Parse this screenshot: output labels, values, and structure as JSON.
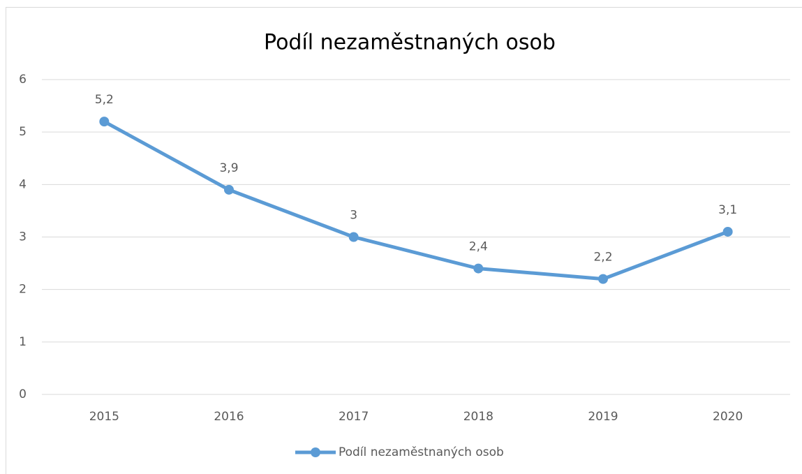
{
  "chart_data": {
    "type": "line",
    "title": "Podíl nezaměstnaných osob",
    "categories": [
      "2015",
      "2016",
      "2017",
      "2018",
      "2019",
      "2020"
    ],
    "series": [
      {
        "name": "Podíl nezaměstnaných osob",
        "color": "#5b9bd5",
        "values": [
          5.2,
          3.9,
          3,
          2.4,
          2.2,
          3.1
        ],
        "value_labels": [
          "5,2",
          "3,9",
          "3",
          "2,4",
          "2,2",
          "3,1"
        ]
      }
    ],
    "ylim": [
      0,
      6
    ],
    "yticks": [
      0,
      1,
      2,
      3,
      4,
      5,
      6
    ],
    "grid": true,
    "legend": "bottom"
  }
}
